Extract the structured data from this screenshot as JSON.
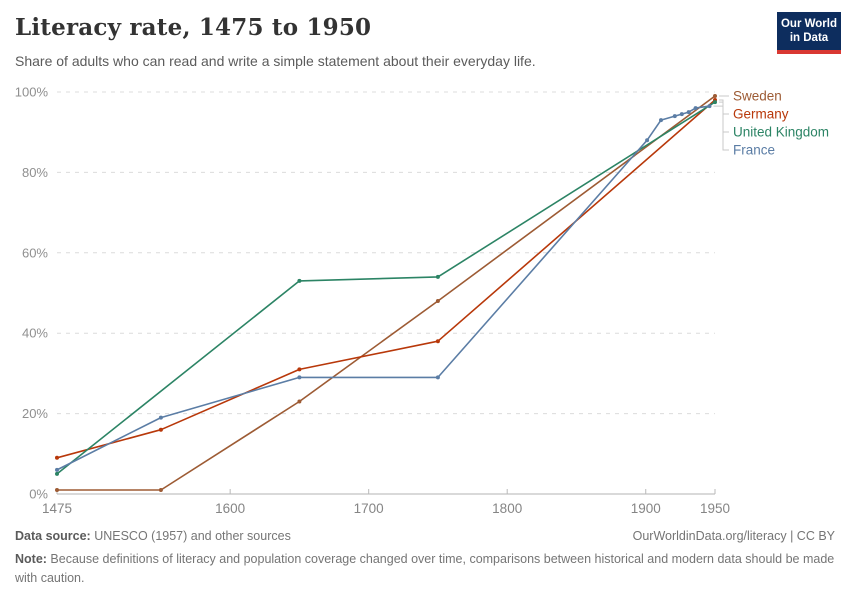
{
  "header": {
    "title": "Literacy rate, 1475 to 1950",
    "subtitle": "Share of adults who can read and write a simple statement about their everyday life.",
    "logo": {
      "line1": "Our World",
      "line2": "in Data",
      "bg_color": "#0d2d5e",
      "accent_color": "#d93832"
    }
  },
  "chart_data": {
    "type": "line",
    "title": "Literacy rate, 1475 to 1950",
    "xlabel": "",
    "ylabel": "",
    "xlim": [
      1475,
      1950
    ],
    "ylim": [
      0,
      100
    ],
    "x_ticks": [
      1475,
      1600,
      1700,
      1800,
      1900,
      1950
    ],
    "y_ticks": [
      0,
      20,
      40,
      60,
      80,
      100
    ],
    "y_tick_suffix": "%",
    "grid": "horizontal-dashed",
    "legend_position": "right",
    "legend_order": [
      "Sweden",
      "Germany",
      "United Kingdom",
      "France"
    ],
    "series": [
      {
        "name": "Sweden",
        "color": "#9d5b34",
        "points": [
          [
            1475,
            1
          ],
          [
            1550,
            1
          ],
          [
            1650,
            23
          ],
          [
            1750,
            48
          ],
          [
            1950,
            99
          ]
        ]
      },
      {
        "name": "Germany",
        "color": "#b8380a",
        "points": [
          [
            1475,
            9
          ],
          [
            1550,
            16
          ],
          [
            1650,
            31
          ],
          [
            1750,
            38
          ],
          [
            1950,
            98
          ]
        ]
      },
      {
        "name": "United Kingdom",
        "color": "#2c8465",
        "points": [
          [
            1475,
            5
          ],
          [
            1650,
            53
          ],
          [
            1750,
            54
          ],
          [
            1950,
            97.5
          ]
        ]
      },
      {
        "name": "France",
        "color": "#5b7da5",
        "points": [
          [
            1475,
            6
          ],
          [
            1550,
            19
          ],
          [
            1650,
            29
          ],
          [
            1750,
            29
          ],
          [
            1901,
            88
          ],
          [
            1911,
            93
          ],
          [
            1921,
            94
          ],
          [
            1926,
            94.5
          ],
          [
            1931,
            95
          ],
          [
            1936,
            96
          ],
          [
            1946,
            96.5
          ]
        ]
      }
    ]
  },
  "footer": {
    "source_label": "Data source:",
    "source_text": " UNESCO (1957) and other sources",
    "link_text": "OurWorldinData.org/literacy | CC BY",
    "note_label": "Note:",
    "note_text": " Because definitions of literacy and population coverage changed over time, comparisons between historical and modern data should be made with caution."
  }
}
